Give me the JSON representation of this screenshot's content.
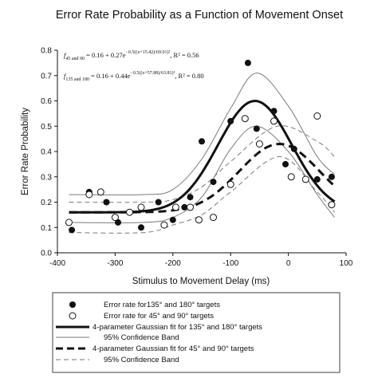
{
  "chart_data": {
    "type": "scatter",
    "title": "Error Rate Probability as a Function of Movement Onset",
    "xlabel": "Stimulus to Movement Delay (ms)",
    "ylabel": "Error Rate Probability",
    "xlim": [
      -400,
      100
    ],
    "ylim": [
      0.0,
      0.8
    ],
    "xticks": [
      "-400",
      "-300",
      "-200",
      "-100",
      "0",
      "100"
    ],
    "yticks": [
      "0.0",
      "0.1",
      "0.2",
      "0.3",
      "0.4",
      "0.5",
      "0.6",
      "0.7",
      "0.8"
    ],
    "grid": false,
    "legend_position": "bottom",
    "equations": [
      {
        "f": "f",
        "sub": "45 and 90",
        "text": "= 0.16 + 0.27e",
        "exp": "−0.5((x+15.42)/69.01)²",
        "r2": ", R² = 0.56"
      },
      {
        "f": "f",
        "sub": "135 and 180",
        "text": "= 0.16 + 0.44e",
        "exp": "−0.5((x+57.88)/63.81)²",
        "r2": ", R² = 0.80"
      }
    ],
    "series": [
      {
        "name": "Error rate for135° and 180° targets",
        "marker": "filled-circle",
        "x": [
          -375,
          -345,
          -315,
          -295,
          -255,
          -225,
          -200,
          -180,
          -170,
          -150,
          -130,
          -100,
          -70,
          -55,
          -25,
          -5,
          10,
          50,
          75
        ],
        "y": [
          0.09,
          0.24,
          0.2,
          0.12,
          0.1,
          0.2,
          0.13,
          0.18,
          0.22,
          0.44,
          0.28,
          0.52,
          0.75,
          0.49,
          0.56,
          0.35,
          0.41,
          0.29,
          0.3
        ]
      },
      {
        "name": "Error rate for 45° and 90° targets",
        "marker": "open-circle",
        "x": [
          -380,
          -345,
          -325,
          -300,
          -275,
          -255,
          -215,
          -195,
          -170,
          -155,
          -130,
          -100,
          -75,
          -50,
          -25,
          5,
          30,
          50,
          75
        ],
        "y": [
          0.12,
          0.23,
          0.24,
          0.14,
          0.16,
          0.18,
          0.11,
          0.18,
          0.18,
          0.13,
          0.14,
          0.27,
          0.53,
          0.43,
          0.52,
          0.3,
          0.29,
          0.54,
          0.19
        ]
      },
      {
        "name": "4-parameter Gaussian fit for 135° and 180° targets",
        "line": "thick-solid",
        "model": {
          "a": 0.16,
          "b": 0.44,
          "c": -57.88,
          "d": 63.81
        },
        "x": [
          -380,
          -300,
          -200,
          -150,
          -100,
          -57.88,
          0,
          50,
          80
        ],
        "y": [
          0.16,
          0.16,
          0.19,
          0.28,
          0.49,
          0.6,
          0.49,
          0.29,
          0.23
        ]
      },
      {
        "name": "95% Confidence Band",
        "line": "thin-solid",
        "upper_x": [
          -380,
          -250,
          -200,
          -150,
          -100,
          -55,
          0,
          50,
          80
        ],
        "upper_y": [
          0.23,
          0.23,
          0.25,
          0.37,
          0.57,
          0.71,
          0.58,
          0.38,
          0.31
        ],
        "lower_x": [
          -380,
          -250,
          -200,
          -150,
          -100,
          -55,
          0,
          50,
          80
        ],
        "lower_y": [
          0.12,
          0.12,
          0.14,
          0.22,
          0.41,
          0.5,
          0.4,
          0.23,
          0.14
        ]
      },
      {
        "name": "4-parameter Gaussian fit for 45° and 90° targets",
        "line": "thick-dashed",
        "model": {
          "a": 0.16,
          "b": 0.27,
          "c": -15.42,
          "d": 69.01
        },
        "x": [
          -380,
          -250,
          -200,
          -150,
          -100,
          -15.42,
          50,
          80
        ],
        "y": [
          0.16,
          0.16,
          0.17,
          0.21,
          0.3,
          0.43,
          0.34,
          0.26
        ]
      },
      {
        "name": "95% Confidence Band",
        "line": "thin-dashed",
        "upper_x": [
          -380,
          -250,
          -200,
          -150,
          -100,
          -20,
          50,
          80
        ],
        "upper_y": [
          0.2,
          0.2,
          0.21,
          0.26,
          0.36,
          0.5,
          0.44,
          0.38
        ],
        "lower_x": [
          -380,
          -250,
          -200,
          -150,
          -100,
          -15,
          50,
          80
        ],
        "lower_y": [
          0.08,
          0.08,
          0.11,
          0.15,
          0.24,
          0.38,
          0.24,
          0.16
        ]
      }
    ]
  }
}
